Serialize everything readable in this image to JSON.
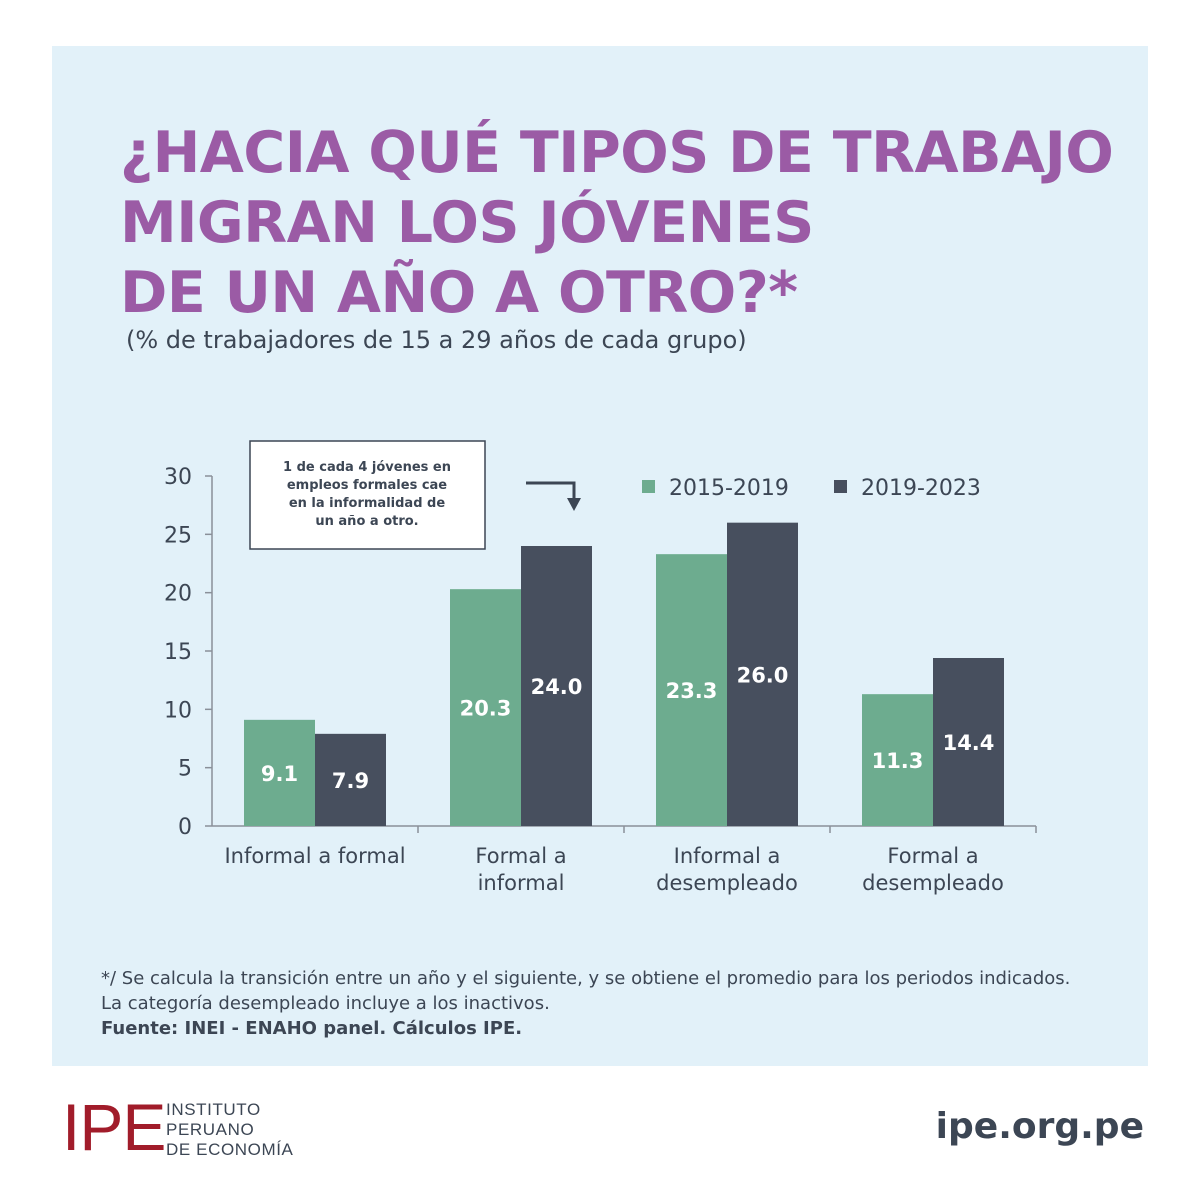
{
  "title_lines": [
    "¿HACIA QUÉ TIPOS DE TRABAJO",
    "MIGRAN LOS JÓVENES",
    "DE UN AÑO A OTRO?*"
  ],
  "subtitle": "(% de trabajadores de 15 a 29 años de cada grupo)",
  "annotation": {
    "lines": [
      "1 de cada 4 jóvenes en",
      "empleos formales cae",
      "en la informalidad de",
      "un año a otro."
    ]
  },
  "chart_data": {
    "type": "bar",
    "categories": [
      [
        "Informal a formal"
      ],
      [
        "Formal a",
        "informal"
      ],
      [
        "Informal a",
        "desempleado"
      ],
      [
        "Formal a",
        "desempleado"
      ]
    ],
    "series": [
      {
        "name": "2015-2019",
        "values": [
          9.1,
          20.3,
          23.3,
          11.3
        ],
        "color": "#6dac8f"
      },
      {
        "name": "2019-2023",
        "values": [
          7.9,
          24.0,
          26.0,
          14.4
        ],
        "color": "#474f5e"
      }
    ],
    "ylim": [
      0,
      30
    ],
    "yticks": [
      0,
      5,
      10,
      15,
      20,
      25,
      30
    ],
    "legend_position": "top-right",
    "grid": false,
    "data_labels": true,
    "title": "",
    "xlabel": "",
    "ylabel": ""
  },
  "footnote": {
    "lines": [
      "*/ Se calcula la transición entre un año y el siguiente, y se obtiene el promedio para los periodos indicados.",
      "La categoría desempleado incluye a los inactivos."
    ],
    "source": "Fuente: INEI - ENAHO panel. Cálculos IPE."
  },
  "logo": {
    "mark": "IPE",
    "text_lines": [
      "INSTITUTO",
      "PERUANO",
      "DE ECONOMÍA"
    ]
  },
  "website": "ipe.org.pe",
  "colors": {
    "background": "#e2f1f9",
    "title": "#9b5ba5",
    "text": "#3c4654",
    "brand_red": "#a11c2a"
  }
}
